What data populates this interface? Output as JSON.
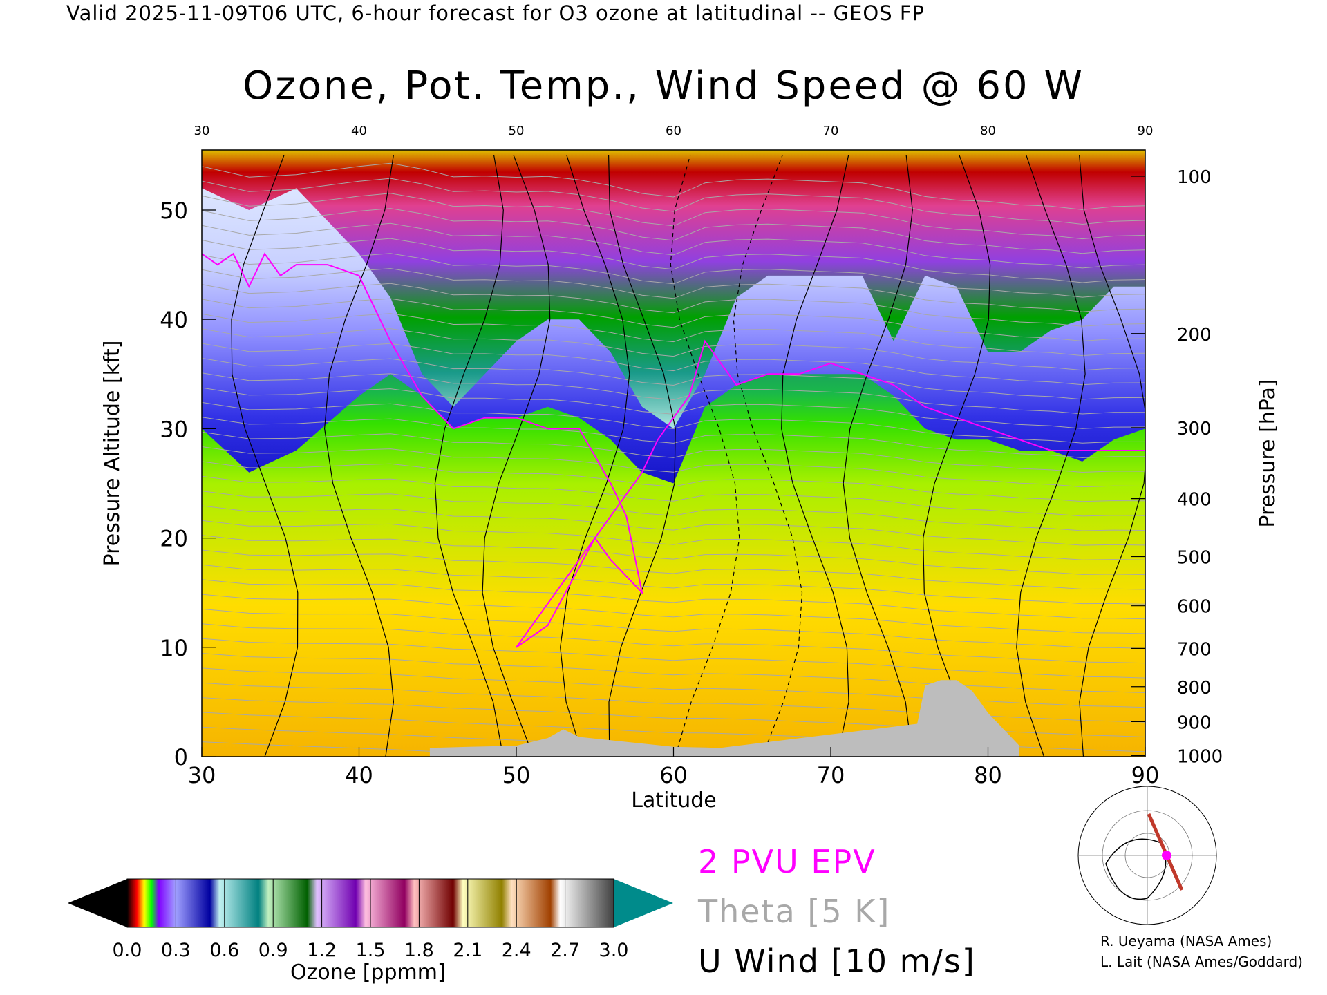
{
  "header": {
    "valid_line": "Valid 2025-11-09T06 UTC, 6-hour forecast for O3 ozone at latitudinal -- GEOS FP"
  },
  "chart_data": {
    "type": "heatmap",
    "title": "Ozone, Pot. Temp., Wind Speed @ 60 W",
    "xlabel": "Latitude",
    "ylabel_left": "Pressure Altitude [kft]",
    "ylabel_right": "Pressure [hPa]",
    "xlim": [
      30,
      90
    ],
    "ylim": [
      0,
      55.5
    ],
    "x_ticks": [
      "30",
      "40",
      "50",
      "60",
      "70",
      "80",
      "90"
    ],
    "top_ticks": [
      "30",
      "40",
      "50",
      "60",
      "70",
      "80",
      "90"
    ],
    "y_ticks": [
      {
        "value": 0,
        "label": "0"
      },
      {
        "value": 10,
        "label": "10"
      },
      {
        "value": 20,
        "label": "20"
      },
      {
        "value": 30,
        "label": "30"
      },
      {
        "value": 40,
        "label": "40"
      },
      {
        "value": 50,
        "label": "50"
      }
    ],
    "pressure_ticks": [
      {
        "kft": 0.1,
        "label": "1000"
      },
      {
        "kft": 3.2,
        "label": "900"
      },
      {
        "kft": 6.4,
        "label": "800"
      },
      {
        "kft": 9.9,
        "label": "700"
      },
      {
        "kft": 13.8,
        "label": "600"
      },
      {
        "kft": 18.3,
        "label": "500"
      },
      {
        "kft": 23.6,
        "label": "400"
      },
      {
        "kft": 30.1,
        "label": "300"
      },
      {
        "kft": 38.7,
        "label": "200"
      },
      {
        "kft": 53.1,
        "label": "100"
      }
    ],
    "tropopause_kft": [
      [
        30,
        30
      ],
      [
        33,
        26
      ],
      [
        36,
        28
      ],
      [
        40,
        33
      ],
      [
        42,
        35
      ],
      [
        44,
        33
      ],
      [
        46,
        30
      ],
      [
        48,
        31
      ],
      [
        50,
        31
      ],
      [
        52,
        32
      ],
      [
        54,
        31
      ],
      [
        56,
        29
      ],
      [
        58,
        26
      ],
      [
        60,
        25
      ],
      [
        62,
        32
      ],
      [
        64,
        34
      ],
      [
        66,
        35
      ],
      [
        68,
        35
      ],
      [
        70,
        35
      ],
      [
        72,
        35
      ],
      [
        74,
        33
      ],
      [
        76,
        30
      ],
      [
        78,
        29
      ],
      [
        80,
        29
      ],
      [
        82,
        28
      ],
      [
        84,
        28
      ],
      [
        86,
        27
      ],
      [
        88,
        29
      ],
      [
        90,
        30
      ]
    ],
    "stratosphere_kft": [
      [
        30,
        52
      ],
      [
        33,
        50
      ],
      [
        36,
        52
      ],
      [
        40,
        46
      ],
      [
        42,
        42
      ],
      [
        44,
        35
      ],
      [
        46,
        32
      ],
      [
        48,
        35
      ],
      [
        50,
        38
      ],
      [
        52,
        40
      ],
      [
        54,
        40
      ],
      [
        56,
        37
      ],
      [
        58,
        32
      ],
      [
        60,
        30
      ],
      [
        62,
        35
      ],
      [
        64,
        42
      ],
      [
        66,
        44
      ],
      [
        68,
        44
      ],
      [
        70,
        44
      ],
      [
        72,
        44
      ],
      [
        74,
        38
      ],
      [
        76,
        44
      ],
      [
        78,
        43
      ],
      [
        80,
        37
      ],
      [
        82,
        37
      ],
      [
        84,
        39
      ],
      [
        86,
        40
      ],
      [
        88,
        43
      ],
      [
        90,
        43
      ]
    ],
    "epv_2pvu_kft": [
      [
        30,
        46
      ],
      [
        31,
        45
      ],
      [
        32,
        46
      ],
      [
        33,
        43
      ],
      [
        34,
        46
      ],
      [
        35,
        44
      ],
      [
        36,
        45
      ],
      [
        37,
        45
      ],
      [
        38,
        45
      ],
      [
        40,
        44
      ],
      [
        42,
        38
      ],
      [
        44,
        33
      ],
      [
        46,
        30
      ],
      [
        48,
        31
      ],
      [
        50,
        31
      ],
      [
        52,
        30
      ],
      [
        54,
        30
      ],
      [
        56,
        25
      ],
      [
        57,
        22
      ],
      [
        58,
        15
      ],
      [
        56,
        18
      ],
      [
        55,
        20
      ],
      [
        52,
        12
      ],
      [
        51,
        11
      ],
      [
        50,
        10
      ],
      [
        51,
        12
      ],
      [
        54,
        18
      ],
      [
        56,
        22
      ],
      [
        58,
        26
      ],
      [
        59,
        29
      ],
      [
        60,
        31
      ],
      [
        61,
        33
      ],
      [
        62,
        38
      ],
      [
        63,
        36
      ],
      [
        64,
        34
      ],
      [
        66,
        35
      ],
      [
        68,
        35
      ],
      [
        70,
        36
      ],
      [
        72,
        35
      ],
      [
        74,
        34
      ],
      [
        76,
        32
      ],
      [
        78,
        31
      ],
      [
        80,
        30
      ],
      [
        82,
        29
      ],
      [
        84,
        28
      ],
      [
        86,
        28
      ],
      [
        88,
        28
      ],
      [
        90,
        28
      ]
    ],
    "terrain_kft": [
      [
        44.5,
        0.8
      ],
      [
        47,
        0.9
      ],
      [
        50,
        1.0
      ],
      [
        52,
        1.7
      ],
      [
        53,
        2.5
      ],
      [
        54,
        1.8
      ],
      [
        56,
        1.5
      ],
      [
        60,
        0.9
      ],
      [
        63,
        0.8
      ],
      [
        75.5,
        3.0
      ],
      [
        76,
        6.5
      ],
      [
        77,
        7.0
      ],
      [
        78,
        7.0
      ],
      [
        79,
        6.0
      ],
      [
        80,
        4.0
      ],
      [
        81,
        2.5
      ],
      [
        82,
        1.0
      ]
    ],
    "colorbar": {
      "label": "Ozone [ppmm]",
      "ticks": [
        "0.0",
        "0.3",
        "0.6",
        "0.9",
        "1.2",
        "1.5",
        "1.8",
        "2.1",
        "2.4",
        "2.7",
        "3.0"
      ],
      "min": 0,
      "max": 3.0
    },
    "legend": {
      "epv": "2 PVU EPV",
      "theta": "Theta [5 K]",
      "wind": "U Wind [10 m/s]",
      "epv_color": "#ff00ff",
      "theta_color": "#a8a8a8",
      "wind_color": "#000000"
    }
  },
  "credits": {
    "line1": "R. Ueyama (NASA Ames)",
    "line2": "L. Lait (NASA Ames/Goddard)"
  }
}
